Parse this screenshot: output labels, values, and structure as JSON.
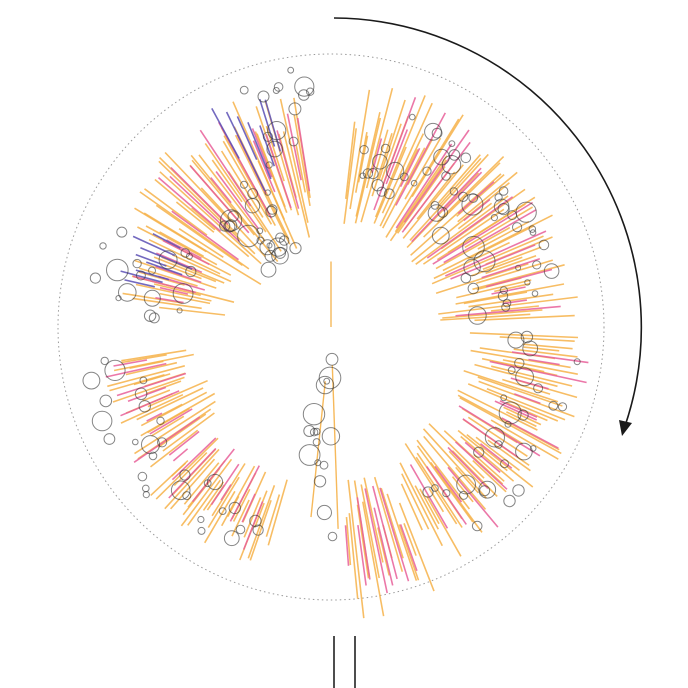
{
  "chart_data": {
    "type": "scatter",
    "title": "",
    "xlabel": "",
    "ylabel": "",
    "theta_range": [
      0,
      360
    ],
    "radius_range": [
      0,
      1
    ],
    "grid": false,
    "legend": "none",
    "direction": "clockwise",
    "colors": {
      "orange": "#f6b24a",
      "pink": "#e8609a",
      "purple": "#5b4fb5",
      "circle": "#333333",
      "ring": "#9a9a9a",
      "arrow": "#1a1a1a"
    },
    "series": [
      {
        "color": "orange",
        "clusters": [
          {
            "theta": [
              6,
              88
            ],
            "r": [
              0.38,
              0.92
            ],
            "n": 70
          },
          {
            "theta": [
              92,
              156
            ],
            "r": [
              0.5,
              0.98
            ],
            "n": 58
          },
          {
            "theta": [
              158,
              176
            ],
            "r": [
              0.55,
              1.08
            ],
            "n": 16
          },
          {
            "theta": [
              196,
              228
            ],
            "r": [
              0.58,
              0.92
            ],
            "n": 30
          },
          {
            "theta": [
              232,
              262
            ],
            "r": [
              0.48,
              0.86
            ],
            "n": 26
          },
          {
            "theta": [
              276,
              300
            ],
            "r": [
              0.36,
              0.8
            ],
            "n": 18
          },
          {
            "theta": [
              300,
              352
            ],
            "r": [
              0.3,
              0.9
            ],
            "n": 40
          }
        ]
      },
      {
        "color": "pink",
        "clusters": [
          {
            "theta": [
              14,
              86
            ],
            "r": [
              0.42,
              0.9
            ],
            "n": 22
          },
          {
            "theta": [
              96,
              150
            ],
            "r": [
              0.55,
              0.96
            ],
            "n": 18
          },
          {
            "theta": [
              160,
              176
            ],
            "r": [
              0.6,
              1.06
            ],
            "n": 8
          },
          {
            "theta": [
              200,
              262
            ],
            "r": [
              0.55,
              0.88
            ],
            "n": 18
          },
          {
            "theta": [
              278,
              300
            ],
            "r": [
              0.42,
              0.78
            ],
            "n": 8
          },
          {
            "theta": [
              306,
              352
            ],
            "r": [
              0.4,
              0.88
            ],
            "n": 16
          }
        ]
      },
      {
        "color": "purple",
        "clusters": [
          {
            "theta": [
              282,
              298
            ],
            "r": [
              0.55,
              0.8
            ],
            "n": 8
          },
          {
            "theta": [
              330,
              346
            ],
            "r": [
              0.55,
              0.92
            ],
            "n": 7
          }
        ]
      }
    ],
    "circle_clusters": [
      {
        "theta": [
          10,
          86
        ],
        "r": [
          0.52,
          0.84
        ],
        "n": 56
      },
      {
        "theta": [
          92,
          150
        ],
        "r": [
          0.66,
          0.92
        ],
        "n": 30
      },
      {
        "theta": [
          178,
          192
        ],
        "r": [
          0.1,
          0.78
        ],
        "n": 16
      },
      {
        "theta": [
          198,
          262
        ],
        "r": [
          0.7,
          0.92
        ],
        "n": 30
      },
      {
        "theta": [
          272,
          298
        ],
        "r": [
          0.55,
          0.9
        ],
        "n": 18
      },
      {
        "theta": [
          312,
          336
        ],
        "r": [
          0.28,
          0.62
        ],
        "n": 24
      },
      {
        "theta": [
          338,
          356
        ],
        "r": [
          0.62,
          0.96
        ],
        "n": 14
      }
    ],
    "spokes": [
      {
        "theta": 0,
        "r": [
          0.0,
          0.24
        ],
        "color": "orange"
      },
      {
        "theta": 178,
        "r": [
          0.14,
          0.74
        ],
        "color": "orange"
      },
      {
        "theta": 186,
        "r": [
          0.2,
          0.7
        ],
        "color": "orange"
      }
    ]
  }
}
